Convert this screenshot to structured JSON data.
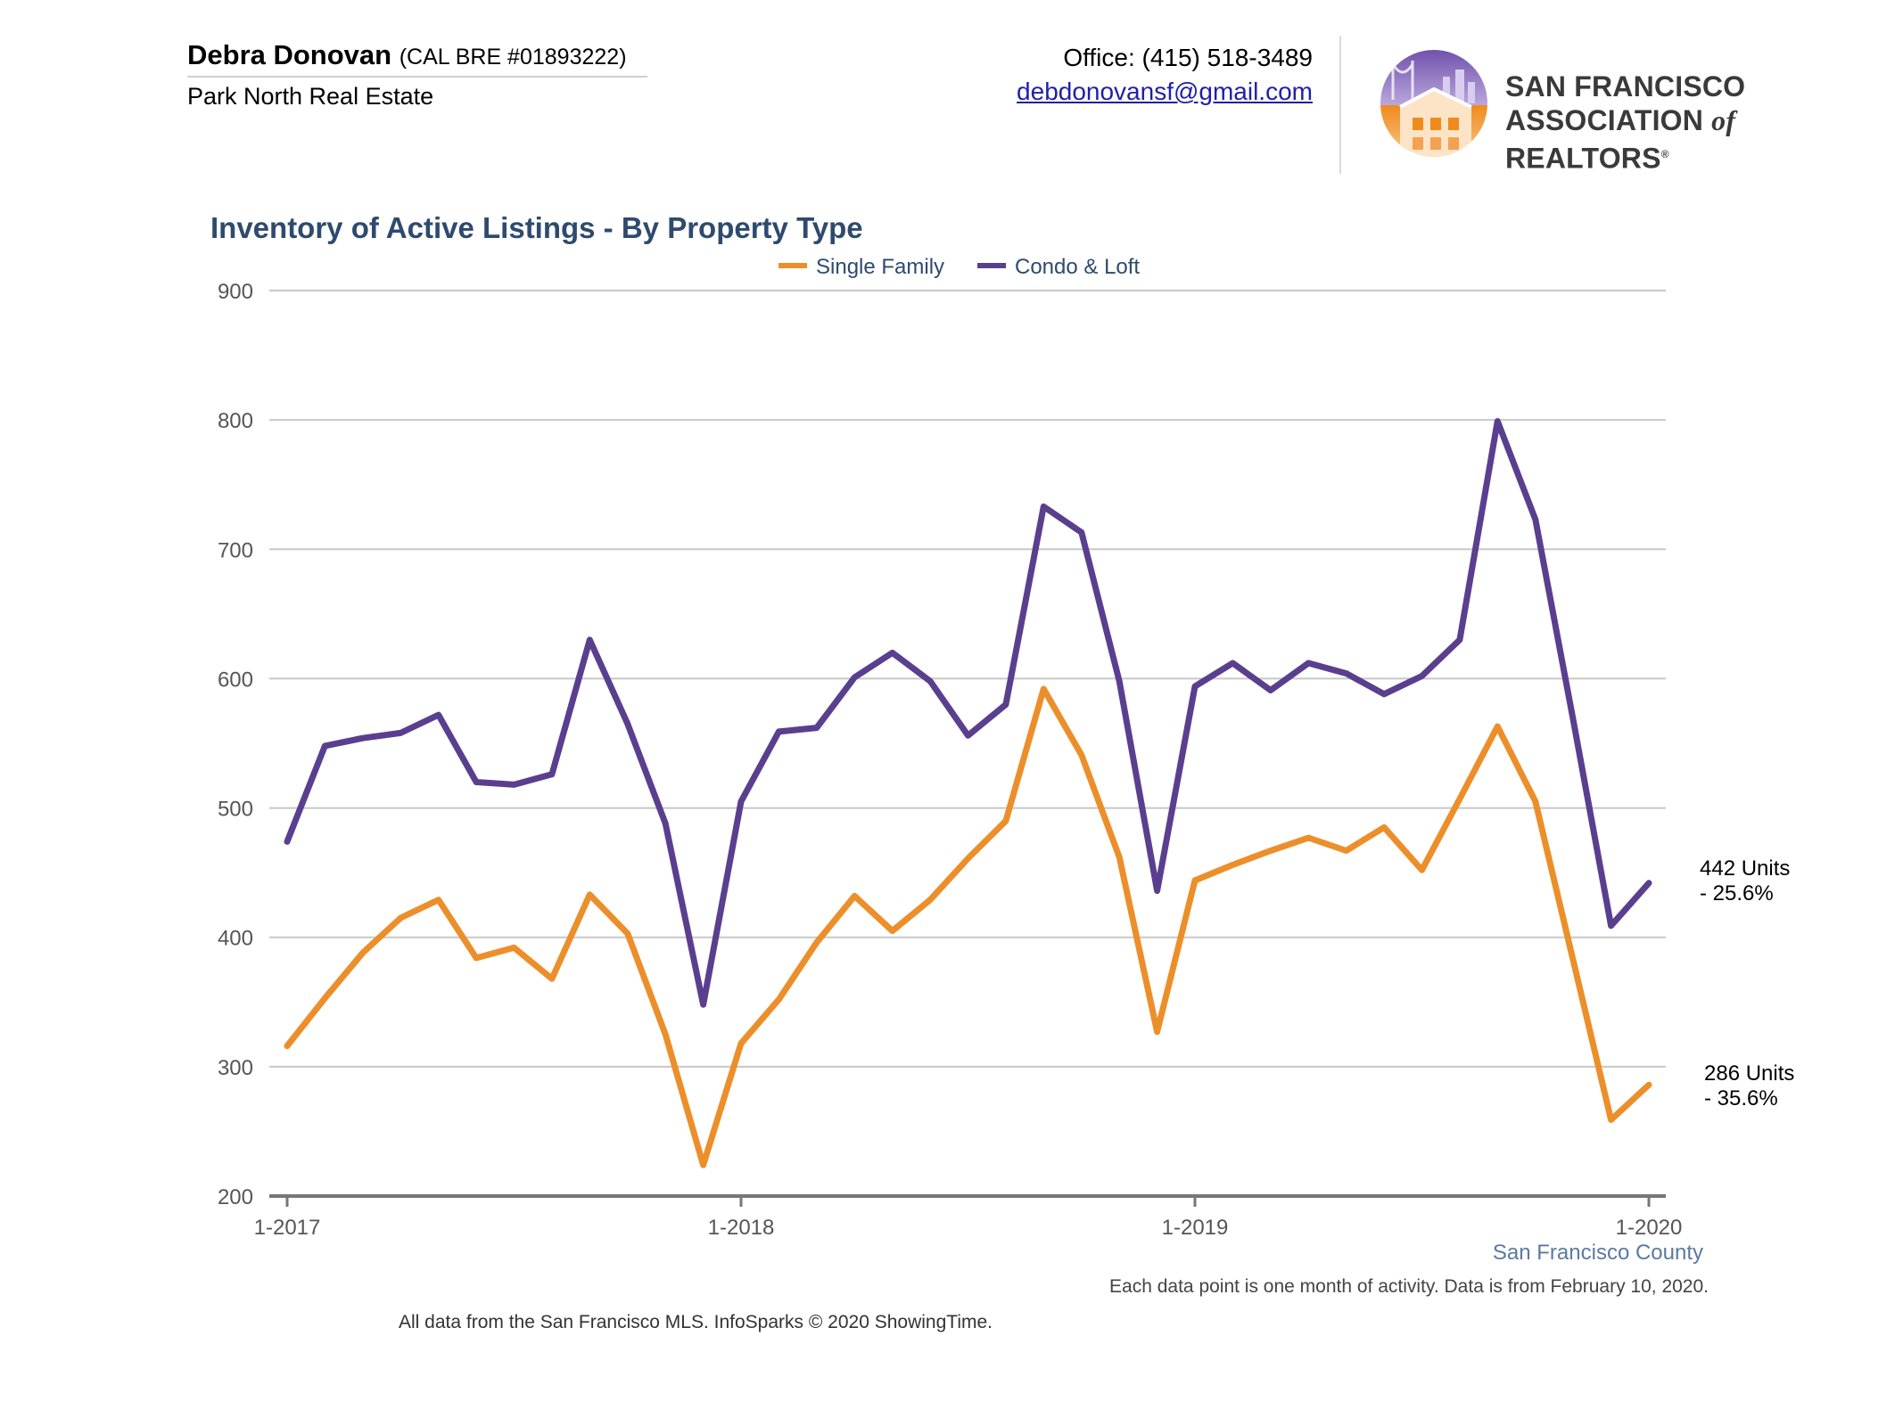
{
  "header": {
    "agent_name": "Debra Donovan",
    "license": "(CAL BRE #01893222)",
    "company": "Park North Real Estate",
    "office_phone": "Office: (415) 518-3489",
    "email": "debdonovansf@gmail.com",
    "logo_line1": "SAN FRANCISCO",
    "logo_line2_a": "ASSOCIATION",
    "logo_line2_of": "of",
    "logo_line2_b": "REALTORS",
    "logo_reg": "®"
  },
  "colors": {
    "single_family": "#ec8f2a",
    "condo": "#5a3f8f",
    "title": "#2e4a6e",
    "grid": "#c8c8c8",
    "axis": "#777777",
    "county": "#5b7aa0"
  },
  "chart_data": {
    "type": "line",
    "title": "Inventory of Active Listings - By Property Type",
    "legend_position": "top-center",
    "grid": true,
    "ylim": [
      200,
      900
    ],
    "yticks": [
      "900",
      "800",
      "700",
      "600",
      "500",
      "400",
      "300",
      "200"
    ],
    "ytick_values": [
      900,
      800,
      700,
      600,
      500,
      400,
      300,
      200
    ],
    "xtick_labels": [
      "1-2017",
      "1-2018",
      "1-2019",
      "1-2020"
    ],
    "xtick_index": [
      0,
      12,
      24,
      36
    ],
    "x_months": 37,
    "series": [
      {
        "name": "Single Family",
        "color": "#ec8f2a",
        "values": [
          316,
          353,
          388,
          415,
          429,
          384,
          392,
          368,
          433,
          403,
          325,
          224,
          318,
          352,
          396,
          432,
          405,
          429,
          461,
          490,
          592,
          541,
          462,
          327,
          444,
          456,
          467,
          477,
          467,
          485,
          452,
          507,
          563,
          505,
          382,
          259,
          286
        ],
        "end_label_1": "286 Units",
        "end_label_2": "- 35.6%"
      },
      {
        "name": "Condo & Loft",
        "color": "#5a3f8f",
        "values": [
          474,
          548,
          554,
          558,
          572,
          520,
          518,
          526,
          630,
          565,
          488,
          348,
          505,
          559,
          562,
          601,
          620,
          598,
          556,
          580,
          733,
          713,
          598,
          436,
          594,
          612,
          591,
          612,
          604,
          588,
          602,
          630,
          799,
          723,
          568,
          409,
          442
        ],
        "end_label_1": "442 Units",
        "end_label_2": "- 25.6%"
      }
    ],
    "region_label": "San Francisco County"
  },
  "footer": {
    "note": "Each data point is one month of activity. Data is from February 10, 2020.",
    "source": "All data from the San Francisco MLS. InfoSparks © 2020 ShowingTime."
  }
}
